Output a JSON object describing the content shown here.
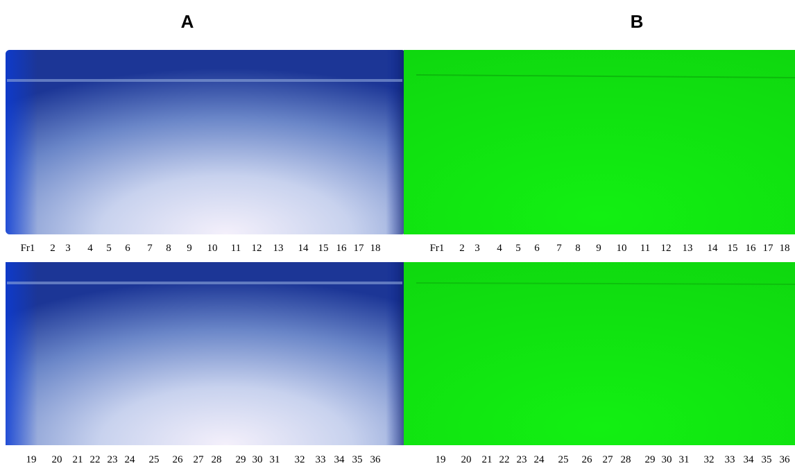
{
  "panels": [
    {
      "label": "A",
      "rows": [
        [
          "Fr1",
          "2",
          "3",
          "4",
          "5",
          "6",
          "7",
          "8",
          "9",
          "10",
          "11",
          "12",
          "13",
          "14",
          "15",
          "16",
          "17",
          "18"
        ],
        [
          "19",
          "20",
          "21",
          "22",
          "23",
          "24",
          "25",
          "26",
          "27",
          "28",
          "29",
          "30",
          "31",
          "32",
          "33",
          "34",
          "35",
          "36"
        ]
      ]
    },
    {
      "label": "B",
      "rows": [
        [
          "Fr1",
          "2",
          "3",
          "4",
          "5",
          "6",
          "7",
          "8",
          "9",
          "10",
          "11",
          "12",
          "13",
          "14",
          "15",
          "16",
          "17",
          "18"
        ],
        [
          "19",
          "20",
          "21",
          "22",
          "23",
          "24",
          "25",
          "26",
          "27",
          "28",
          "29",
          "30",
          "31",
          "32",
          "33",
          "34",
          "35",
          "36"
        ]
      ]
    }
  ]
}
